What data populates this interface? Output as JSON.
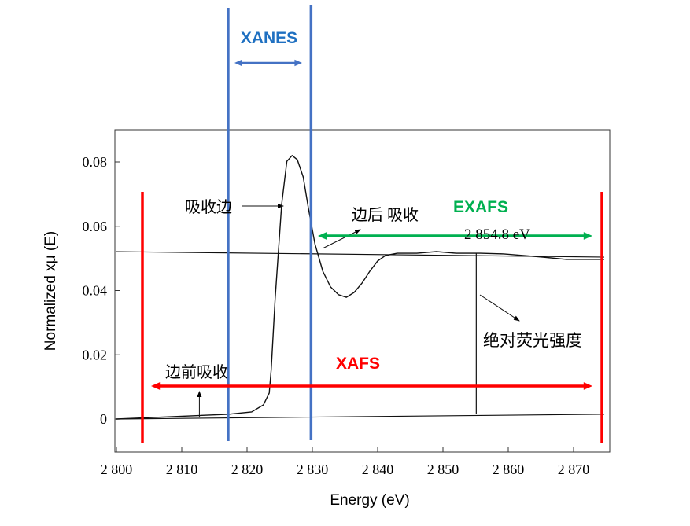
{
  "chart_data": {
    "type": "line",
    "title": "",
    "xlabel": "Energy (eV)",
    "ylabel": "Normalized xμ (E)",
    "xlim": [
      2800,
      2875
    ],
    "ylim": [
      -0.01,
      0.09
    ],
    "xticks": [
      2800,
      2810,
      2820,
      2830,
      2840,
      2850,
      2860,
      2870
    ],
    "xtick_labels": [
      "2 800",
      "2 810",
      "2 820",
      "2 830",
      "2 840",
      "2 850",
      "2 860",
      "2 870"
    ],
    "yticks": [
      0,
      0.02,
      0.04,
      0.06,
      0.08
    ],
    "ytick_labels": [
      "0",
      "0.02",
      "0.04",
      "0.06",
      "0.08"
    ],
    "grid": false,
    "series": [
      {
        "x": [
          2800,
          2817.1,
          2820.7,
          2822.5,
          2823.4,
          2823.7,
          2824.3,
          2825.3,
          2826.1,
          2826.9,
          2827.7,
          2828.6,
          2829.4,
          2830.4,
          2831.6,
          2832.8,
          2834.0,
          2835.2,
          2836.4,
          2837.6,
          2838.8,
          2840.0,
          2841.2,
          2843.0,
          2846.0,
          2849.0,
          2852.0,
          2855.7,
          2859.3,
          2862.3,
          2865.3,
          2868.9,
          2874.7
        ],
        "y": [
          0,
          0.0015,
          0.0022,
          0.0044,
          0.0081,
          0.0154,
          0.0374,
          0.0668,
          0.0802,
          0.082,
          0.0807,
          0.0753,
          0.0656,
          0.0545,
          0.046,
          0.0411,
          0.0387,
          0.0379,
          0.0394,
          0.0423,
          0.046,
          0.0492,
          0.0509,
          0.0516,
          0.0516,
          0.0521,
          0.0516,
          0.0516,
          0.0514,
          0.0509,
          0.0504,
          0.0497,
          0.0497
        ]
      }
    ],
    "reference_lines": {
      "pre_edge": {
        "x": [
          2800,
          2874.7
        ],
        "y": [
          0,
          0.0015
        ]
      },
      "post_edge": {
        "x": [
          2800,
          2874.7
        ],
        "y": [
          0.0521,
          0.0504
        ]
      },
      "fluorescence_marker_x": 2855.1,
      "pre_edge_marker_x": 2812.7
    },
    "annotations": {
      "absorption_edge": "吸收边",
      "post_edge_absorption": "边后 吸收",
      "edge_energy": "2 854.8 eV",
      "absolute_fluorescence": "绝对荧光强度",
      "pre_edge_absorption": "边前吸收"
    },
    "regions": {
      "xanes": {
        "label": "XANES",
        "x": [
          2817.1,
          2829.8
        ],
        "color": "#4472c4",
        "label_color": "#1f70c1"
      },
      "exafs": {
        "label": "EXAFS",
        "x": [
          2829.8,
          2871.5
        ],
        "color": "#00b050"
      },
      "xafs": {
        "label": "XAFS",
        "x": [
          2804,
          2874
        ],
        "color": "#ff0000"
      }
    }
  }
}
